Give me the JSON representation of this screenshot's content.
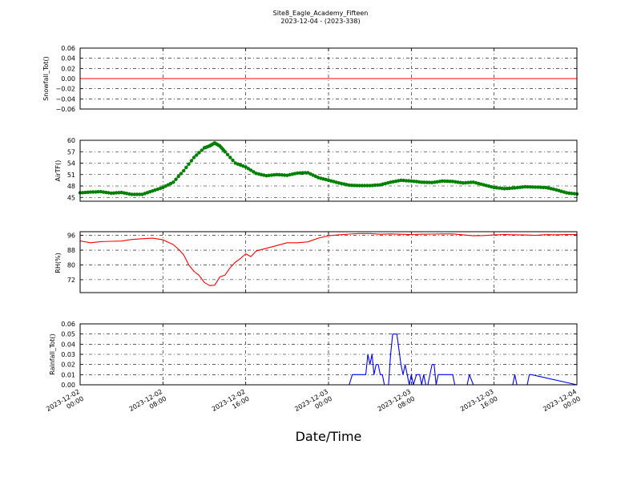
{
  "figure": {
    "title": "Site8_Eagle_Academy_Fifteen",
    "subtitle": "2023-12-04 - (2023-338)",
    "xlabel": "Date/Time"
  },
  "x_ticks": [
    {
      "hours": 0,
      "line1": "2023-12-02",
      "line2": "00:00"
    },
    {
      "hours": 8,
      "line1": "2023-12-02",
      "line2": "08:00"
    },
    {
      "hours": 16,
      "line1": "2023-12-02",
      "line2": "16:00"
    },
    {
      "hours": 24,
      "line1": "2023-12-03",
      "line2": "00:00"
    },
    {
      "hours": 32,
      "line1": "2023-12-03",
      "line2": "08:00"
    },
    {
      "hours": 40,
      "line1": "2023-12-03",
      "line2": "16:00"
    },
    {
      "hours": 48,
      "line1": "2023-12-04",
      "line2": "00:00"
    }
  ],
  "chart_data": [
    {
      "type": "line",
      "ylabel": "Snowfall_Tot()",
      "xlim": [
        "2023-12-02 00:00",
        "2023-12-04 00:00"
      ],
      "ylim": [
        -0.06,
        0.06
      ],
      "yticks": [
        0.06,
        0.04,
        0.02,
        0.0,
        -0.02,
        -0.04,
        -0.06
      ],
      "ytick_labels": [
        "0.06",
        "0.04",
        "0.02",
        "0.00",
        "−0.02",
        "−0.04",
        "−0.06"
      ],
      "color": "#ff0000",
      "marker": "none",
      "grid": true,
      "x": [
        0,
        48
      ],
      "y": [
        0,
        0
      ]
    },
    {
      "type": "line",
      "ylabel": "AirTF()",
      "xlim": [
        "2023-12-02 00:00",
        "2023-12-04 00:00"
      ],
      "ylim": [
        44,
        60
      ],
      "yticks": [
        60,
        57,
        54,
        51,
        48,
        45
      ],
      "ytick_labels": [
        "60",
        "57",
        "54",
        "51",
        "48",
        "45"
      ],
      "color": "#008000",
      "marker": "circle",
      "grid": true,
      "x": [
        0,
        1,
        2,
        3,
        4,
        5,
        6,
        7,
        8,
        9,
        10,
        11,
        12,
        12.5,
        13,
        13.5,
        14,
        15,
        16,
        17,
        18,
        19,
        20,
        21,
        22,
        23,
        24,
        25,
        26,
        27,
        28,
        29,
        30,
        31,
        32,
        33,
        34,
        35,
        36,
        37,
        38,
        39,
        40,
        41,
        42,
        43,
        44,
        45,
        46,
        47,
        48
      ],
      "y": [
        46.2,
        46.4,
        46.5,
        46.1,
        46.3,
        45.8,
        45.8,
        46.7,
        47.6,
        49.0,
        52.0,
        55.5,
        58.0,
        58.5,
        59.3,
        58.5,
        57.0,
        54.0,
        53.0,
        51.3,
        50.7,
        51.0,
        50.8,
        51.4,
        51.5,
        50.2,
        49.5,
        48.8,
        48.2,
        48.1,
        48.1,
        48.3,
        49.0,
        49.5,
        49.3,
        49.0,
        48.9,
        49.3,
        49.2,
        48.8,
        49.0,
        48.3,
        47.6,
        47.3,
        47.5,
        47.8,
        47.7,
        47.6,
        47.0,
        46.2,
        45.9
      ]
    },
    {
      "type": "line",
      "ylabel": "RH(%)",
      "xlim": [
        "2023-12-02 00:00",
        "2023-12-04 00:00"
      ],
      "ylim": [
        65,
        98
      ],
      "yticks": [
        96,
        88,
        80,
        72
      ],
      "ytick_labels": [
        "96",
        "88",
        "80",
        "72"
      ],
      "color": "#ff0000",
      "marker": "none",
      "grid": true,
      "x": [
        0,
        1,
        2,
        3,
        4,
        5,
        6,
        7,
        8,
        9,
        9.5,
        10,
        10.5,
        11,
        11.5,
        12,
        12.5,
        13,
        13.5,
        14,
        14.5,
        15,
        15.5,
        16,
        16.5,
        17,
        18,
        19,
        20,
        21,
        22,
        23,
        24,
        25,
        26,
        27,
        28,
        29,
        30,
        31,
        32,
        33,
        34,
        35,
        36,
        37,
        38,
        39,
        40,
        41,
        42,
        43,
        44,
        45,
        46,
        47,
        48
      ],
      "y": [
        93.0,
        92.0,
        92.6,
        92.8,
        92.9,
        93.8,
        94.2,
        94.5,
        93.6,
        91.0,
        88.5,
        85.5,
        80.0,
        76.5,
        74.3,
        70.5,
        68.8,
        69.0,
        73.5,
        74.5,
        78.5,
        81.5,
        83.5,
        86.0,
        84.5,
        87.5,
        89.0,
        90.5,
        92.0,
        92.0,
        92.5,
        94.5,
        95.8,
        96.3,
        96.7,
        97.0,
        97.0,
        96.6,
        96.8,
        96.6,
        96.5,
        96.6,
        96.7,
        96.8,
        96.8,
        96.3,
        95.8,
        95.9,
        96.2,
        96.5,
        96.3,
        96.2,
        96.0,
        96.4,
        96.3,
        96.5,
        96.4
      ]
    },
    {
      "type": "line",
      "ylabel": "Rainfall_Tot()",
      "xlim": [
        "2023-12-02 00:00",
        "2023-12-04 00:00"
      ],
      "ylim": [
        0,
        0.06
      ],
      "yticks": [
        0.06,
        0.05,
        0.04,
        0.03,
        0.02,
        0.01,
        0.0
      ],
      "ytick_labels": [
        "0.06",
        "0.05",
        "0.04",
        "0.03",
        "0.02",
        "0.01",
        "0.00"
      ],
      "color": "#0000ff",
      "marker": "none",
      "grid": true,
      "x": [
        0,
        26.0,
        26.3,
        27.6,
        27.8,
        28.0,
        28.2,
        28.4,
        28.6,
        28.8,
        29.0,
        29.2,
        29.4,
        29.6,
        29.8,
        30.0,
        30.2,
        30.4,
        30.6,
        31.0,
        31.2,
        31.4,
        31.6,
        31.8,
        32.0,
        32.2,
        32.5,
        32.8,
        33.0,
        33.2,
        33.4,
        33.6,
        33.8,
        34.0,
        34.2,
        34.4,
        34.6,
        34.8,
        35.0,
        35.2,
        35.4,
        35.6,
        35.8,
        36.0,
        36.2,
        36.4,
        36.6,
        36.8,
        37.0,
        37.2,
        37.4,
        37.6,
        38.0,
        38.4,
        38.6,
        38.8,
        39.0,
        39.2,
        39.4,
        41.8,
        42.0,
        42.2,
        43.2,
        43.4,
        43.6,
        48
      ],
      "y": [
        0,
        0,
        0.01,
        0.01,
        0.03,
        0.02,
        0.03,
        0.01,
        0.02,
        0.02,
        0.01,
        0.01,
        0.0,
        0.0,
        0.0,
        0.03,
        0.05,
        0.05,
        0.05,
        0.02,
        0.01,
        0.02,
        0.01,
        0.0,
        0.01,
        0.0,
        0.01,
        0.01,
        0.0,
        0.01,
        0.0,
        0.0,
        0.01,
        0.02,
        0.02,
        0.0,
        0.01,
        0.01,
        0.01,
        0.01,
        0.01,
        0.01,
        0.01,
        0.01,
        0.0,
        0.0,
        0.0,
        0.0,
        0.0,
        0.0,
        0.0,
        0.01,
        0.0,
        0.0,
        0.0,
        0.0,
        0.0,
        0.0,
        0.0,
        0.0,
        0.01,
        0.0,
        0.0,
        0.01,
        0.01,
        0.0
      ]
    }
  ]
}
